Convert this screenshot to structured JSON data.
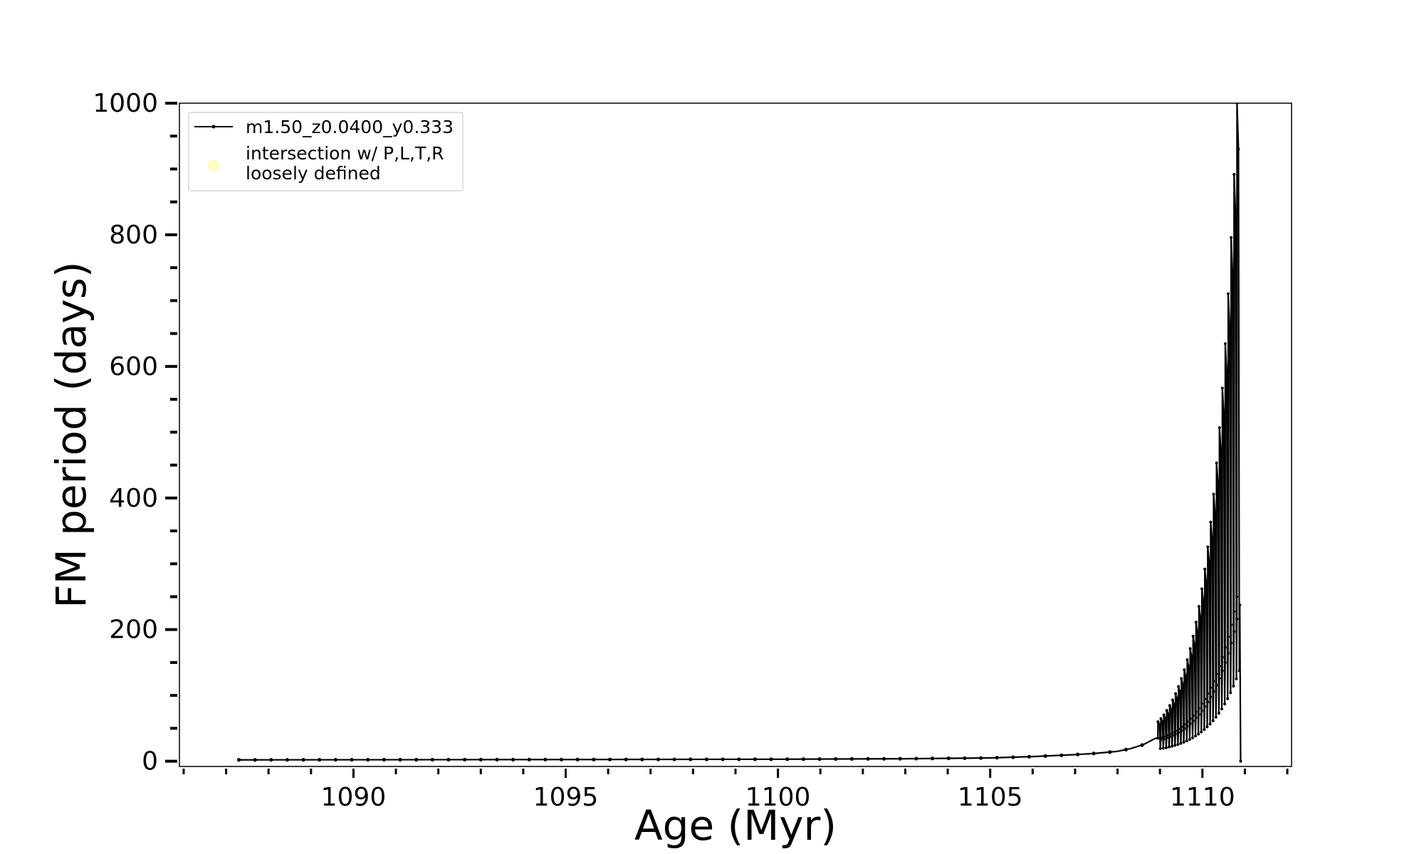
{
  "chart_data": {
    "type": "line",
    "xlabel": "Age (Myr)",
    "ylabel": "FM period (days)",
    "xlim": [
      1085.9,
      1112.1
    ],
    "ylim": [
      -8,
      1000
    ],
    "x_major_ticks": [
      1090,
      1095,
      1100,
      1105,
      1110
    ],
    "x_minor_tick_step": 1,
    "y_major_ticks": [
      0,
      200,
      400,
      600,
      800,
      1000
    ],
    "y_minor_tick_step": 50,
    "grid": false,
    "legend": {
      "position": "top-left",
      "entries": [
        {
          "label": "m1.50_z0.0400_y0.333",
          "marker": "line-dot",
          "color": "#000000"
        },
        {
          "label_lines": [
            "intersection w/ P,L,T,R",
            "loosely defined"
          ],
          "marker": "circle",
          "color": "#ffffc0"
        }
      ]
    },
    "series": [
      {
        "name": "m1.50_z0.0400_y0.333",
        "color": "#000000",
        "smooth_trend": {
          "x": [
            1087.3,
            1090,
            1095,
            1100,
            1103,
            1105,
            1106,
            1107,
            1107.5,
            1108,
            1108.3,
            1108.6,
            1108.9
          ],
          "y": [
            2,
            2.2,
            2.5,
            3,
            3.8,
            5,
            7,
            10,
            12,
            15,
            19,
            25,
            35
          ]
        },
        "pulse_cycles": {
          "start_age": 1108.95,
          "end_age": 1110.88,
          "count": 28,
          "base_start": 35,
          "base_end": 250,
          "peak_start": 60,
          "peak_end": 1000,
          "final_drop_to": 0
        }
      }
    ]
  }
}
